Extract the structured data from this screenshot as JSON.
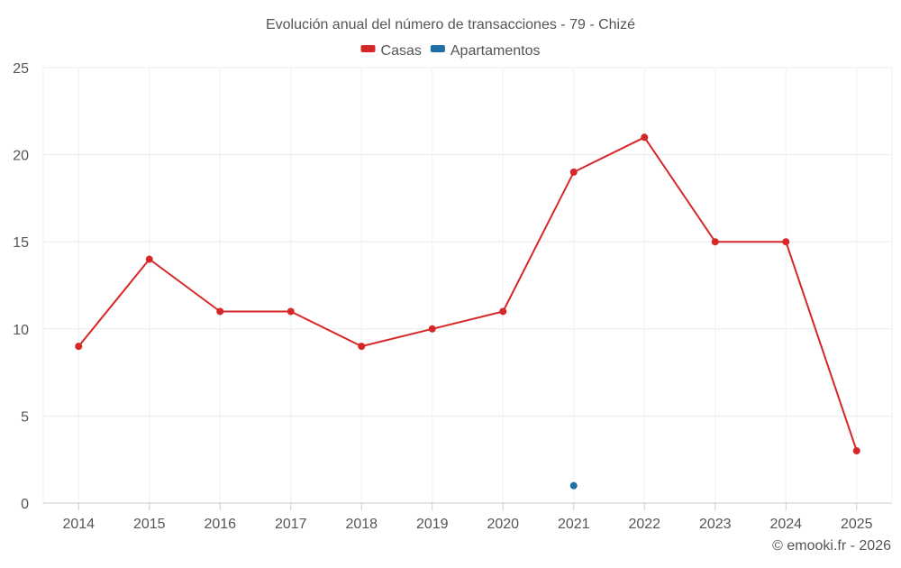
{
  "chart_data": {
    "type": "line",
    "title": "Evolución anual del número de transacciones - 79 - Chizé",
    "x": [
      "2014",
      "2015",
      "2016",
      "2017",
      "2018",
      "2019",
      "2020",
      "2021",
      "2022",
      "2023",
      "2024",
      "2025"
    ],
    "series": [
      {
        "name": "Casas",
        "color": "#d62728",
        "values": [
          9,
          14,
          11,
          11,
          9,
          10,
          11,
          19,
          21,
          15,
          15,
          3
        ]
      },
      {
        "name": "Apartamentos",
        "color": "#1f6fa6",
        "values": [
          null,
          null,
          null,
          null,
          null,
          null,
          null,
          1,
          null,
          null,
          null,
          null
        ]
      }
    ],
    "ylim": [
      0,
      25
    ],
    "yticks": [
      "0",
      "5",
      "10",
      "15",
      "20",
      "25"
    ],
    "xlabel": "",
    "ylabel": "",
    "grid": true,
    "legend": "top-center"
  },
  "credit": "© emooki.fr - 2026"
}
